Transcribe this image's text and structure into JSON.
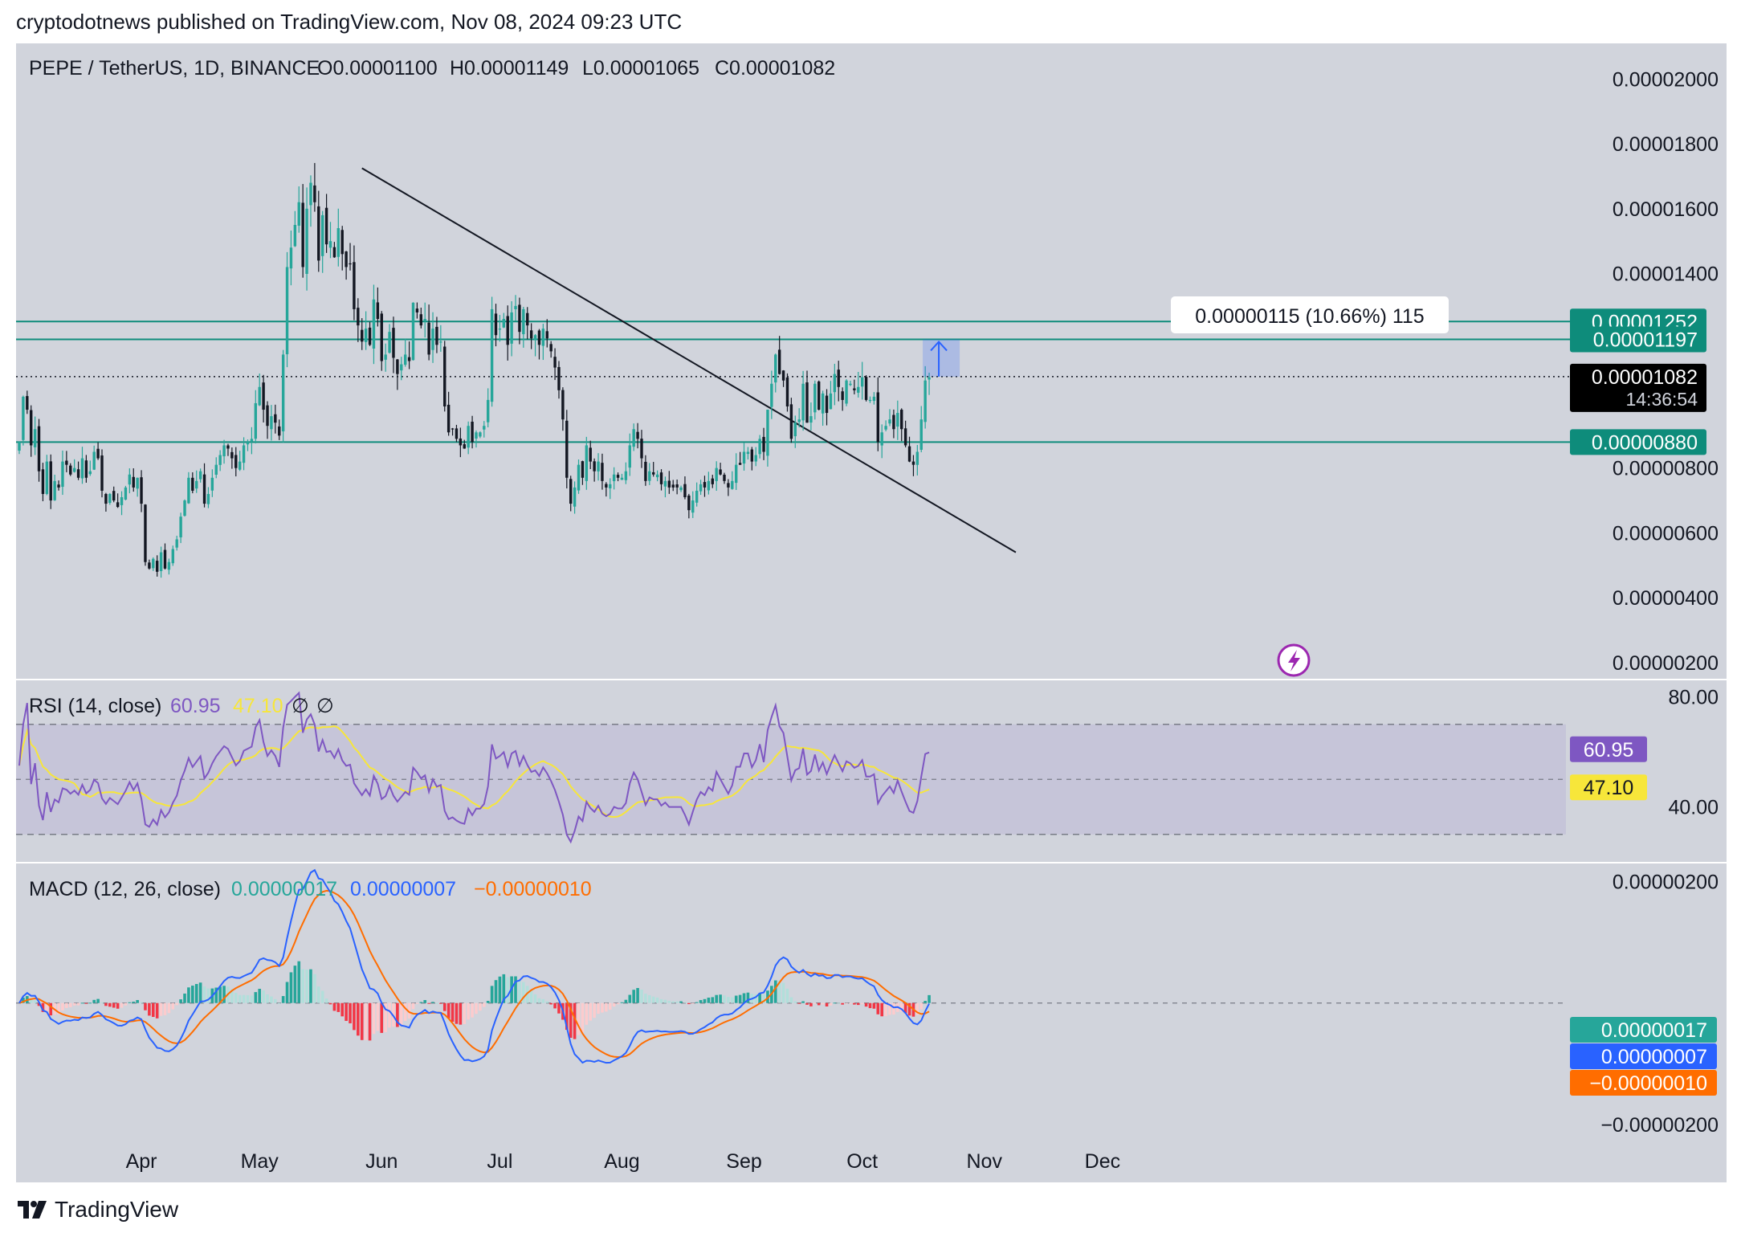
{
  "header": {
    "caption": "cryptodotnews published on TradingView.com, Nov 08, 2024 09:23 UTC"
  },
  "footer": {
    "brand": "TradingView"
  },
  "colors": {
    "panel_bg": "#d1d4dc",
    "up": "#26a69a",
    "down": "#131722",
    "hline": "#0e8c7b",
    "rsi": "#7e57c2",
    "rsi_ma": "#f7e63a",
    "macd": "#2962ff",
    "signal": "#ff6d00",
    "hist_up": "#26a69a",
    "hist_up_weak": "#b2dfdb",
    "hist_down": "#f23645",
    "hist_down_weak": "#fccbcd"
  },
  "chart_data": [
    {
      "type": "candlestick",
      "title": "PEPE / TetherUS, 1D, BINANCE",
      "ohlc_legend": {
        "open": "O0.00001100",
        "high": "H0.00001149",
        "low": "L0.00001065",
        "close": "C0.00001082"
      },
      "ylim": [
        1.5e-06,
        2.11e-05
      ],
      "y_ticks": [
        "0.00002000",
        "0.00001800",
        "0.00001600",
        "0.00001400",
        "0.00000800",
        "0.00000600",
        "0.00000400",
        "0.00000200"
      ],
      "x_ticks": [
        "Apr",
        "May",
        "Jun",
        "Jul",
        "Aug",
        "Sep",
        "Oct",
        "Nov",
        "Dec"
      ],
      "horizontal_levels": [
        {
          "value": 1.252e-05,
          "label": "0.00001252"
        },
        {
          "value": 1.197e-05,
          "label": "0.00001197"
        },
        {
          "value": 8.8e-06,
          "label": "0.00000880"
        }
      ],
      "current_price": {
        "value": 1.082e-05,
        "label": "0.00001082",
        "countdown": "14:36:54"
      },
      "measure_annotation": "0.00000115 (10.66%) 115",
      "trendline": {
        "from": {
          "date": "2024-05-27",
          "price": 1.725e-05
        },
        "to": {
          "date": "2024-11-09",
          "price": 5.4e-06
        }
      },
      "start_date": "2024-03-01",
      "closes": [
        8.8e-06,
        1.02e-05,
        9.8e-06,
        8.7e-06,
        9.2e-06,
        7.9e-06,
        7.2e-06,
        8.2e-06,
        7e-06,
        7.6e-06,
        7.4e-06,
        8.2e-06,
        8.1e-06,
        7.8e-06,
        8e-06,
        7.7e-06,
        8.3e-06,
        7.7e-06,
        7.9e-06,
        8.5e-06,
        8.3e-06,
        7.3e-06,
        6.9e-06,
        7.2e-06,
        7e-06,
        6.8e-06,
        7.1e-06,
        7.4e-06,
        7.8e-06,
        7.4e-06,
        7.7e-06,
        6.9e-06,
        5.1e-06,
        4.9e-06,
        5.2e-06,
        4.8e-06,
        5.4e-06,
        4.9e-06,
        5.1e-06,
        5.5e-06,
        5.8e-06,
        6.5e-06,
        7e-06,
        7.7e-06,
        7.3e-06,
        7.6e-06,
        7.9e-06,
        6.9e-06,
        7.2e-06,
        7.7e-06,
        8.1e-06,
        8.4e-06,
        8.7e-06,
        8.6e-06,
        8.3e-06,
        8e-06,
        8.2e-06,
        8.7e-06,
        8.8e-06,
        8.9e-06,
        1e-05,
        1.05e-05,
        9.8e-06,
        9.3e-06,
        9.6e-06,
        9.4e-06,
        9e-06,
        1.15e-05,
        1.42e-05,
        1.48e-05,
        1.55e-05,
        1.62e-05,
        1.42e-05,
        1.6e-05,
        1.68e-05,
        1.62e-05,
        1.44e-05,
        1.58e-05,
        1.49e-05,
        1.5e-05,
        1.45e-05,
        1.54e-05,
        1.46e-05,
        1.42e-05,
        1.43e-05,
        1.29e-05,
        1.24e-05,
        1.19e-05,
        1.23e-05,
        1.18e-05,
        1.32e-05,
        1.26e-05,
        1.13e-05,
        1.15e-05,
        1.22e-05,
        1.14e-05,
        1.09e-05,
        1.12e-05,
        1.15e-05,
        1.13e-05,
        1.31e-05,
        1.28e-05,
        1.24e-05,
        1.26e-05,
        1.15e-05,
        1.23e-05,
        1.18e-05,
        1.19e-05,
        9.9e-06,
        9.1e-06,
        9.2e-06,
        8.9e-06,
        8.7e-06,
        8.6e-06,
        9.3e-06,
        8.8e-06,
        9.1e-06,
        9.1e-06,
        9.3e-06,
        1.01e-05,
        1.29e-05,
        1.21e-05,
        1.23e-05,
        1.26e-05,
        1.18e-05,
        1.28e-05,
        1.3e-05,
        1.22e-05,
        1.29e-05,
        1.24e-05,
        1.2e-05,
        1.21e-05,
        1.18e-05,
        1.23e-05,
        1.2e-05,
        1.16e-05,
        1.11e-05,
        1.04e-05,
        9.5e-06,
        7.7e-06,
        6.9e-06,
        7.4e-06,
        8.1e-06,
        7.7e-06,
        8.7e-06,
        8.2e-06,
        7.9e-06,
        8.2e-06,
        7.6e-06,
        7.4e-06,
        7.5e-06,
        7.8e-06,
        7.7e-06,
        7.7e-06,
        7.9e-06,
        8.7e-06,
        9.2e-06,
        8.9e-06,
        8.3e-06,
        7.6e-06,
        7.9e-06,
        7.8e-06,
        7.8e-06,
        7.5e-06,
        7.6e-06,
        7.4e-06,
        7.4e-06,
        7.4e-06,
        7.4e-06,
        7.1e-06,
        6.7e-06,
        7e-06,
        7.3e-06,
        7.5e-06,
        7.4e-06,
        7.6e-06,
        7.5e-06,
        8e-06,
        7.8e-06,
        7.6e-06,
        7.4e-06,
        7.6e-06,
        8.1e-06,
        8.1e-06,
        8.5e-06,
        8.5e-06,
        8.2e-06,
        8.4e-06,
        8.9e-06,
        8.5e-06,
        9.8e-06,
        1.06e-05,
        1.15e-05,
        1.09e-05,
        1.07e-05,
        9.9e-06,
        8.9e-06,
        9.4e-06,
        9.5e-06,
        1.06e-05,
        9.4e-06,
        9.6e-06,
        1.06e-05,
        9.8e-06,
        1.03e-05,
        9.7e-06,
        1.03e-05,
        1.09e-05,
        1.05e-05,
        1.01e-05,
        1.07e-05,
        1.06e-05,
        1.04e-05,
        1.05e-05,
        1.08e-05,
        1.01e-05,
        1.01e-05,
        1.02e-05,
        8.8e-06,
        9.1e-06,
        9.3e-06,
        9.5e-06,
        9.2e-06,
        9.7e-06,
        9.2e-06,
        8.7e-06,
        8.2e-06,
        8.1e-06,
        8.5e-06,
        9.5e-06,
        1.07e-05,
        1.08e-05
      ]
    },
    {
      "type": "line",
      "title": "RSI (14, close)",
      "series": [
        {
          "name": "RSI",
          "last": "60.95"
        },
        {
          "name": "RSI-based MA",
          "last": "47.10"
        }
      ],
      "extra_legend": [
        "∅",
        "∅"
      ],
      "y_ticks": [
        "80.00",
        "40.00"
      ],
      "band": [
        30,
        70
      ],
      "midline": 50,
      "ylim": [
        20,
        86
      ]
    },
    {
      "type": "line",
      "title": "MACD (12, 26, close)",
      "series": [
        {
          "name": "Histogram",
          "last": "0.00000017"
        },
        {
          "name": "MACD",
          "last": "0.00000007"
        },
        {
          "name": "Signal",
          "last": "−0.00000010"
        }
      ],
      "y_ticks": [
        "0.00000200",
        "−0.00000200"
      ],
      "ylim": [
        -2.4e-06,
        2.3e-06
      ]
    }
  ]
}
